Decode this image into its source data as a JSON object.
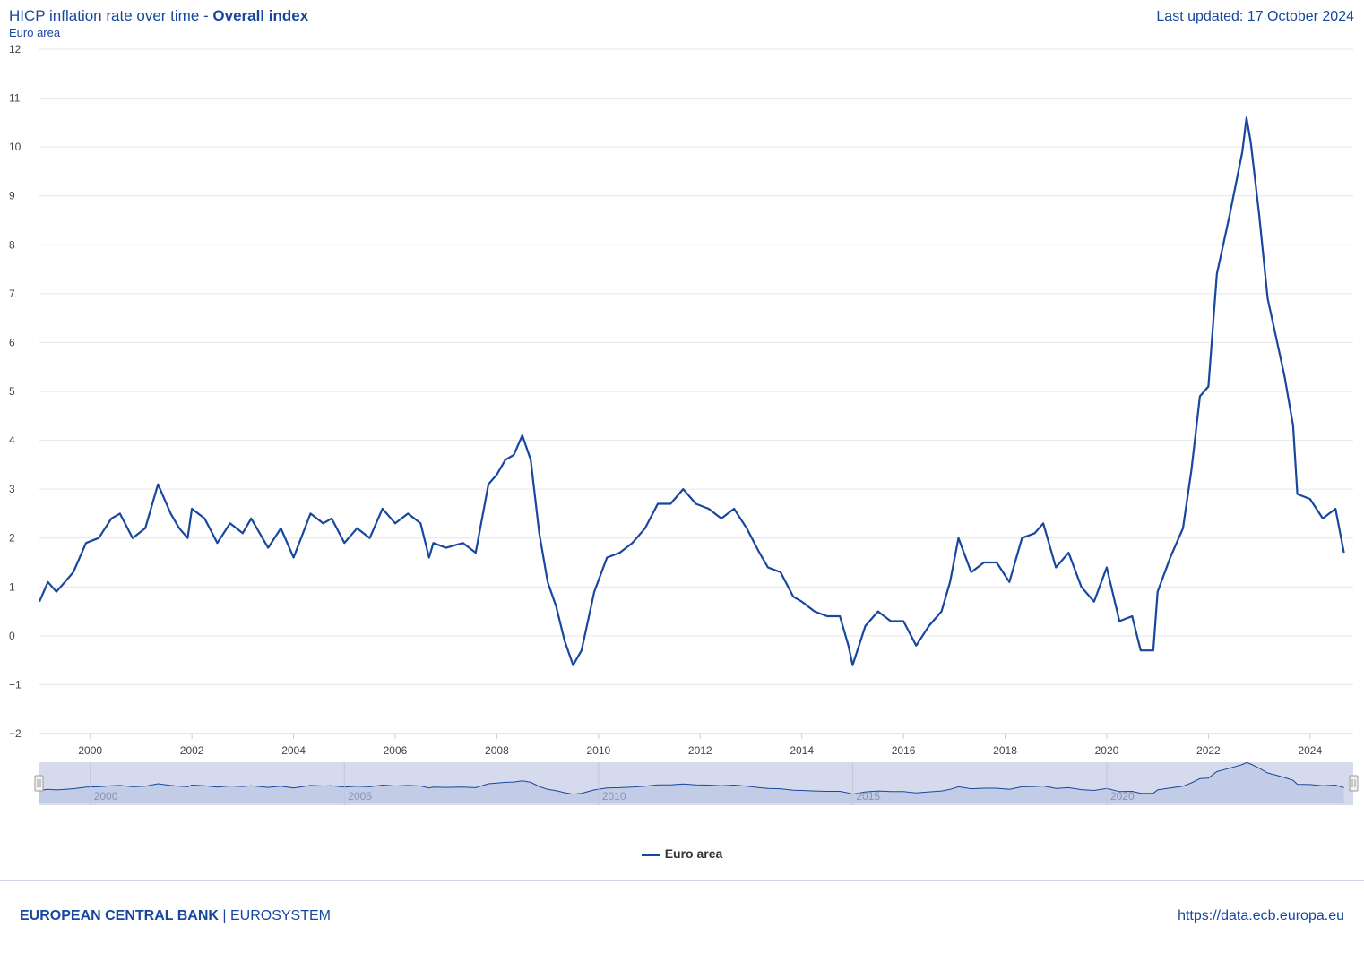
{
  "header": {
    "title_prefix": "HICP inflation rate over time - ",
    "title_bold": "Overall index",
    "subtitle": "Euro area",
    "last_updated": "Last updated: 17 October 2024"
  },
  "footer": {
    "bank": "EUROPEAN CENTRAL BANK",
    "separator": " | ",
    "system": "EUROSYSTEM",
    "url": "https://data.ecb.europa.eu"
  },
  "colors": {
    "series": "#17479e",
    "grid": "#e6e6e6",
    "navigator_bg": "#d5dbec"
  },
  "chart_data": {
    "type": "line",
    "title": "HICP inflation rate over time - Overall index",
    "subtitle": "Euro area",
    "ylim": [
      -2,
      12
    ],
    "y_ticks": [
      -2,
      -1,
      0,
      1,
      2,
      3,
      4,
      5,
      6,
      7,
      8,
      9,
      10,
      11,
      12
    ],
    "x_ticks": [
      "2000",
      "2002",
      "2004",
      "2006",
      "2008",
      "2010",
      "2012",
      "2014",
      "2016",
      "2018",
      "2020",
      "2022",
      "2024"
    ],
    "navigator_ticks": [
      "2000",
      "2005",
      "2010",
      "2015",
      "2020"
    ],
    "grid": true,
    "legend": "bottom-center",
    "series": [
      {
        "name": "Euro area",
        "x": [
          "1999-01",
          "1999-03",
          "1999-05",
          "1999-07",
          "1999-09",
          "1999-12",
          "2000-03",
          "2000-06",
          "2000-08",
          "2000-11",
          "2001-02",
          "2001-05",
          "2001-08",
          "2001-10",
          "2001-12",
          "2002-01",
          "2002-04",
          "2002-07",
          "2002-10",
          "2003-01",
          "2003-03",
          "2003-07",
          "2003-10",
          "2004-01",
          "2004-05",
          "2004-08",
          "2004-10",
          "2005-01",
          "2005-04",
          "2005-07",
          "2005-10",
          "2006-01",
          "2006-04",
          "2006-07",
          "2006-09",
          "2006-10",
          "2007-01",
          "2007-05",
          "2007-08",
          "2007-11",
          "2008-01",
          "2008-03",
          "2008-05",
          "2008-07",
          "2008-09",
          "2008-11",
          "2009-01",
          "2009-03",
          "2009-05",
          "2009-07",
          "2009-09",
          "2009-12",
          "2010-03",
          "2010-06",
          "2010-09",
          "2010-12",
          "2011-03",
          "2011-06",
          "2011-09",
          "2011-12",
          "2012-03",
          "2012-06",
          "2012-09",
          "2012-12",
          "2013-03",
          "2013-05",
          "2013-08",
          "2013-11",
          "2014-01",
          "2014-04",
          "2014-07",
          "2014-10",
          "2014-12",
          "2015-01",
          "2015-04",
          "2015-07",
          "2015-10",
          "2016-01",
          "2016-04",
          "2016-07",
          "2016-10",
          "2016-12",
          "2017-02",
          "2017-05",
          "2017-08",
          "2017-11",
          "2018-02",
          "2018-05",
          "2018-08",
          "2018-10",
          "2019-01",
          "2019-04",
          "2019-07",
          "2019-10",
          "2020-01",
          "2020-04",
          "2020-07",
          "2020-09",
          "2020-12",
          "2021-01",
          "2021-04",
          "2021-07",
          "2021-09",
          "2021-11",
          "2022-01",
          "2022-03",
          "2022-06",
          "2022-09",
          "2022-10",
          "2022-11",
          "2023-01",
          "2023-03",
          "2023-05",
          "2023-07",
          "2023-09",
          "2023-10",
          "2024-01",
          "2024-04",
          "2024-07",
          "2024-09"
        ],
        "values": [
          0.7,
          1.1,
          0.9,
          1.1,
          1.3,
          1.9,
          2.0,
          2.4,
          2.5,
          2.0,
          2.2,
          3.1,
          2.5,
          2.2,
          2.0,
          2.6,
          2.4,
          1.9,
          2.3,
          2.1,
          2.4,
          1.8,
          2.2,
          1.6,
          2.5,
          2.3,
          2.4,
          1.9,
          2.2,
          2.0,
          2.6,
          2.3,
          2.5,
          2.3,
          1.6,
          1.9,
          1.8,
          1.9,
          1.7,
          3.1,
          3.3,
          3.6,
          3.7,
          4.1,
          3.6,
          2.1,
          1.1,
          0.6,
          -0.1,
          -0.6,
          -0.3,
          0.9,
          1.6,
          1.7,
          1.9,
          2.2,
          2.7,
          2.7,
          3.0,
          2.7,
          2.6,
          2.4,
          2.6,
          2.2,
          1.7,
          1.4,
          1.3,
          0.8,
          0.7,
          0.5,
          0.4,
          0.4,
          -0.2,
          -0.6,
          0.2,
          0.5,
          0.3,
          0.3,
          -0.2,
          0.2,
          0.5,
          1.1,
          2.0,
          1.3,
          1.5,
          1.5,
          1.1,
          2.0,
          2.1,
          2.3,
          1.4,
          1.7,
          1.0,
          0.7,
          1.4,
          0.3,
          0.4,
          -0.3,
          -0.3,
          0.9,
          1.6,
          2.2,
          3.4,
          4.9,
          5.1,
          7.4,
          8.6,
          9.9,
          10.6,
          10.1,
          8.6,
          6.9,
          6.1,
          5.3,
          4.3,
          2.9,
          2.8,
          2.4,
          2.6,
          1.7
        ]
      }
    ]
  }
}
